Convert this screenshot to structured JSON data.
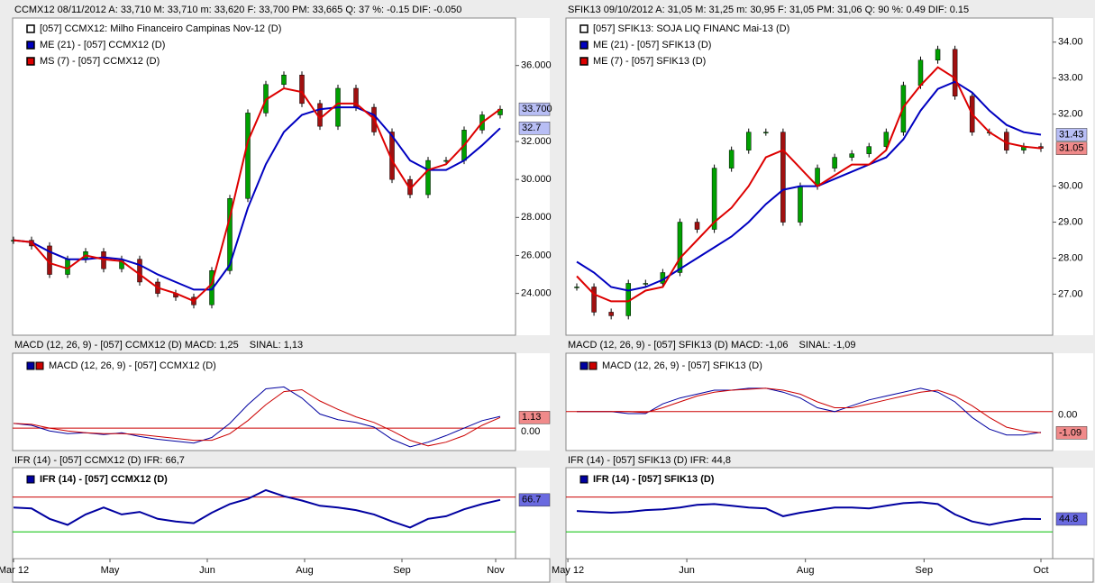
{
  "panels": [
    {
      "header": "CCMX12   08/11/2012   A: 33,710   M: 33,710   m: 33,620   F: 33,700   PM: 33,665   Q: 37   %: -0.15  DIF: -0.050",
      "price": {
        "ylim": [
          21.8,
          38.5
        ],
        "yticks": [
          {
            "value": 24,
            "label": "24.000"
          },
          {
            "value": 26,
            "label": "26.000"
          },
          {
            "value": 28,
            "label": "28.000"
          },
          {
            "value": 30,
            "label": "30.000"
          },
          {
            "value": 32,
            "label": "32.000"
          },
          {
            "value": 36,
            "label": "36.000"
          }
        ],
        "series": [
          {
            "name": "[057] CCMX12: Milho Financeiro Campinas Nov-12     (D)",
            "type": "candle",
            "color": "#00a000",
            "down_color": "#a01010",
            "values": [
              26.8,
              26.5,
              25.0,
              25.8,
              26.2,
              25.3,
              25.8,
              24.6,
              24.0,
              23.8,
              23.4,
              25.2,
              29.0,
              33.5,
              35.0,
              35.5,
              34.0,
              32.8,
              34.8,
              33.8,
              32.5,
              30.0,
              29.2,
              31.0,
              31.0,
              32.6,
              33.4,
              33.7
            ]
          },
          {
            "name": "ME (21)  - [057] CCMX12 (D)",
            "type": "line",
            "color": "#0000c0",
            "values": [
              26.8,
              26.7,
              26.2,
              25.8,
              25.8,
              25.9,
              25.8,
              25.5,
              25.0,
              24.6,
              24.2,
              24.2,
              25.5,
              28.5,
              30.8,
              32.5,
              33.4,
              33.7,
              33.8,
              33.8,
              33.4,
              32.3,
              31.0,
              30.5,
              30.5,
              31.0,
              31.8,
              32.7
            ]
          },
          {
            "name": "MS (7)  - [057] CCMX12 (D)",
            "type": "line",
            "color": "#dd0000",
            "values": [
              26.8,
              26.7,
              25.6,
              25.3,
              26.0,
              25.8,
              25.7,
              25.0,
              24.3,
              24.0,
              23.6,
              24.5,
              28.0,
              32.0,
              34.2,
              34.8,
              34.6,
              33.2,
              34.0,
              34.0,
              33.2,
              31.0,
              29.5,
              30.5,
              30.8,
              31.8,
              33.0,
              33.7
            ]
          }
        ],
        "last_labels": [
          {
            "value": 33.7,
            "label": "33.700",
            "color": "#b8bef5"
          },
          {
            "value": 32.7,
            "label": "32.7",
            "color": "#b8bef5"
          }
        ]
      },
      "macd": {
        "header": [
          {
            "text": "MACD (12, 26, 9)  - [057] CCMX12 (D)   MACD: 1,25",
            "color": "#1a1aa0"
          },
          {
            "text": "SINAL: 1,13",
            "color": "#cc0000"
          }
        ],
        "legend": "MACD (12, 26, 9)  - [057] CCMX12 (D)",
        "ylim": [
          -2.4,
          8.0
        ],
        "yticks": [
          {
            "value": 0,
            "label": "0.00"
          }
        ],
        "zero_color": "#cc0000",
        "series": [
          {
            "color": "#0000a0",
            "values": [
              0.5,
              0.3,
              -0.3,
              -0.6,
              -0.5,
              -0.7,
              -0.5,
              -0.9,
              -1.2,
              -1.4,
              -1.6,
              -1.0,
              0.5,
              2.5,
              4.2,
              4.4,
              3.2,
              1.5,
              0.9,
              0.6,
              0.1,
              -1.2,
              -2.0,
              -1.5,
              -0.8,
              0,
              0.8,
              1.25
            ]
          },
          {
            "color": "#cc0000",
            "values": [
              0.5,
              0.4,
              0,
              -0.3,
              -0.5,
              -0.6,
              -0.6,
              -0.7,
              -0.9,
              -1.1,
              -1.3,
              -1.3,
              -0.6,
              0.8,
              2.5,
              3.9,
              4.1,
              2.9,
              2.0,
              1.2,
              0.6,
              -0.3,
              -1.3,
              -1.9,
              -1.5,
              -0.8,
              0.3,
              1.13
            ]
          }
        ],
        "last_label": {
          "value": 1.13,
          "label": "1.13",
          "color": "#f08a8a"
        }
      },
      "ifr": {
        "header": "IFR (14)  - [057] CCMX12 (D)   IFR: 66,7",
        "legend": "IFR (14)   - [057] CCMX12 (D)",
        "ylim": [
          -0.8,
          103.8
        ],
        "levels": [
          {
            "value": 70,
            "color": "#cc0000"
          },
          {
            "value": 30,
            "color": "#00c000"
          }
        ],
        "color": "#0000a0",
        "values": [
          58,
          57,
          45,
          38,
          50,
          58,
          50,
          53,
          45,
          42,
          40,
          52,
          62,
          68,
          78,
          71,
          66,
          60,
          58,
          55,
          50,
          42,
          35,
          45,
          48,
          56,
          62,
          66.7
        ],
        "last_label": {
          "value": 66.7,
          "label": "66.7",
          "color": "#6a6ae0"
        }
      },
      "xticks": [
        {
          "value": 0,
          "label": "Mar 12"
        },
        {
          "value": 5.35,
          "label": "May"
        },
        {
          "value": 10.75,
          "label": "Jun"
        },
        {
          "value": 16.15,
          "label": "Aug"
        },
        {
          "value": 21.55,
          "label": "Sep"
        },
        {
          "value": 26.75,
          "label": "Nov"
        }
      ]
    },
    {
      "header": "SFIK13   09/10/2012   A: 31,05   M: 31,25   m: 30,95   F: 31,05   PM: 31,06   Q: 90   %: 0.49  DIF: 0.15",
      "price": {
        "ylim": [
          25.86,
          34.67
        ],
        "yticks": [
          {
            "value": 27,
            "label": "27.00"
          },
          {
            "value": 28,
            "label": "28.00"
          },
          {
            "value": 29,
            "label": "29.00"
          },
          {
            "value": 30,
            "label": "30.00"
          },
          {
            "value": 32,
            "label": "32.00"
          },
          {
            "value": 33,
            "label": "33.00"
          },
          {
            "value": 34,
            "label": "34.00"
          }
        ],
        "series": [
          {
            "name": "[057] SFIK13: SOJA LIQ FINANC Mai-13     (D)",
            "type": "candle",
            "color": "#00a000",
            "down_color": "#a01010",
            "values": [
              27.2,
              26.5,
              26.4,
              27.3,
              27.3,
              27.6,
              29.0,
              28.8,
              30.5,
              31.0,
              31.5,
              31.5,
              29.0,
              30.0,
              30.5,
              30.8,
              30.9,
              31.1,
              31.5,
              32.8,
              33.5,
              33.8,
              32.5,
              31.5,
              31.5,
              31.0,
              31.1,
              31.05
            ]
          },
          {
            "name": "ME (21)  - [057] SFIK13 (D)",
            "type": "line",
            "color": "#0000c0",
            "values": [
              27.9,
              27.6,
              27.2,
              27.1,
              27.2,
              27.4,
              27.7,
              28.0,
              28.3,
              28.6,
              29.0,
              29.5,
              29.9,
              30.0,
              30.0,
              30.2,
              30.4,
              30.6,
              30.8,
              31.3,
              32.1,
              32.7,
              32.9,
              32.6,
              32.1,
              31.7,
              31.5,
              31.43
            ]
          },
          {
            "name": "ME (7)  - [057] SFIK13 (D)",
            "type": "line",
            "color": "#dd0000",
            "values": [
              27.5,
              27.0,
              26.8,
              26.8,
              27.1,
              27.2,
              28.0,
              28.5,
              29.0,
              29.4,
              30.0,
              30.8,
              31.0,
              30.5,
              30.0,
              30.3,
              30.6,
              30.6,
              31.0,
              32.2,
              32.8,
              33.3,
              33.0,
              32.0,
              31.5,
              31.2,
              31.1,
              31.05
            ]
          }
        ],
        "last_labels": [
          {
            "value": 31.43,
            "label": "31.43",
            "color": "#b8bef5"
          },
          {
            "value": 31.05,
            "label": "31.05",
            "color": "#f08a8a"
          }
        ]
      },
      "macd": {
        "header": [
          {
            "text": "MACD (12, 26, 9)  - [057] SFIK13 (D)   MACD: -1,06",
            "color": "#1a1aa0"
          },
          {
            "text": "SINAL: -1,09",
            "color": "#cc0000"
          }
        ],
        "legend": "MACD (12, 26, 9)  - [057] SFIK13 (D)",
        "ylim": [
          -2.0,
          3.0
        ],
        "yticks": [
          {
            "value": 0,
            "label": "0.00"
          }
        ],
        "zero_color": "#cc0000",
        "series": [
          {
            "color": "#0000a0",
            "values": [
              0,
              0,
              0,
              -0.1,
              -0.1,
              0.4,
              0.7,
              0.9,
              1.1,
              1.1,
              1.2,
              1.2,
              1.0,
              0.7,
              0.2,
              0,
              0.3,
              0.6,
              0.8,
              1.0,
              1.2,
              1.0,
              0.5,
              -0.3,
              -0.9,
              -1.2,
              -1.2,
              -1.06
            ]
          },
          {
            "color": "#cc0000",
            "values": [
              0,
              0,
              0,
              0,
              -0.05,
              0.2,
              0.5,
              0.8,
              1.0,
              1.1,
              1.15,
              1.2,
              1.1,
              0.9,
              0.5,
              0.2,
              0.2,
              0.4,
              0.6,
              0.8,
              1.0,
              1.1,
              0.8,
              0.3,
              -0.3,
              -0.8,
              -1.0,
              -1.09
            ]
          }
        ],
        "last_label": {
          "value": -1.09,
          "label": "-1.09",
          "color": "#f08a8a"
        }
      },
      "ifr": {
        "header": "IFR (14)  - [057] SFIK13 (D)   IFR: 44,8",
        "legend": "IFR (14)   - [057] SFIK13 (D)",
        "ylim": [
          -0.8,
          103.8
        ],
        "levels": [
          {
            "value": 70,
            "color": "#cc0000"
          },
          {
            "value": 30,
            "color": "#00c000"
          }
        ],
        "color": "#0000a0",
        "values": [
          54,
          53,
          52,
          53,
          55,
          56,
          58,
          61,
          62,
          60,
          58,
          57,
          48,
          52,
          55,
          58,
          58,
          57,
          60,
          63,
          64,
          62,
          50,
          42,
          38,
          42,
          45,
          44.8
        ],
        "last_label": {
          "value": 44.8,
          "label": "44.8",
          "color": "#6a6ae0"
        }
      },
      "xticks": [
        {
          "value": -0.52,
          "label": "May 12"
        },
        {
          "value": 6.4,
          "label": "Jun"
        },
        {
          "value": 13.3,
          "label": "Aug"
        },
        {
          "value": 20.2,
          "label": "Sep"
        },
        {
          "value": 27.0,
          "label": "Oct"
        }
      ]
    }
  ]
}
